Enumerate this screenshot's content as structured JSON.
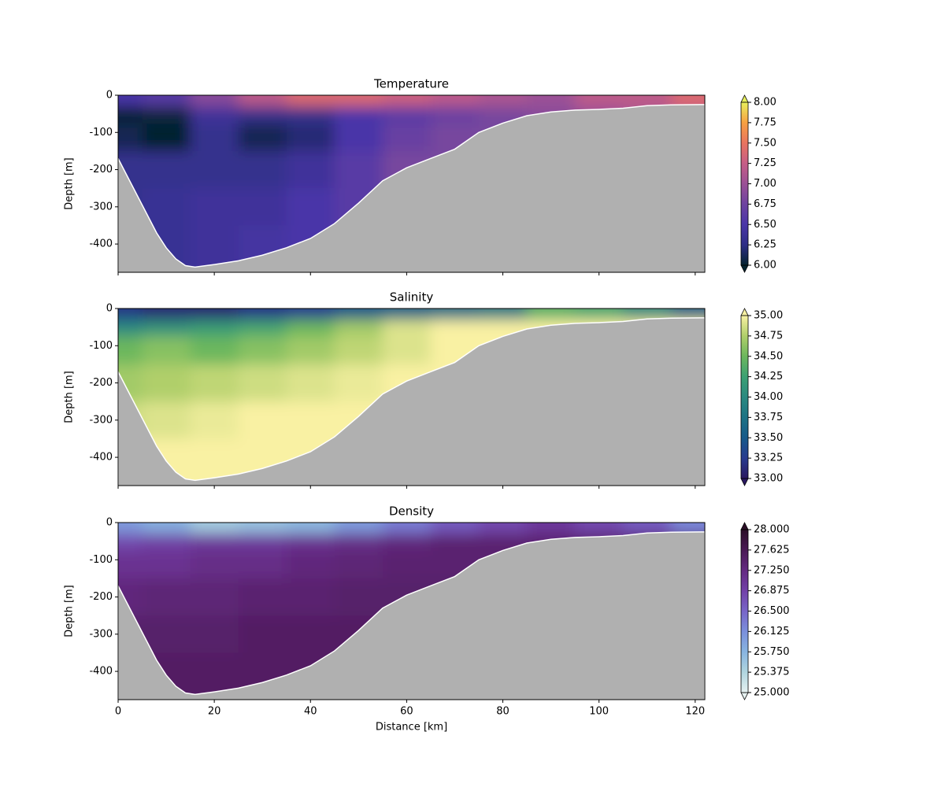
{
  "chart_data": [
    {
      "type": "contour",
      "title": "Temperature",
      "ylabel": "Depth [m]",
      "show_xticklabels": false,
      "xlim": [
        0,
        122
      ],
      "ylim": [
        -476,
        0
      ],
      "xticks": [
        0,
        20,
        40,
        60,
        80,
        100,
        120
      ],
      "yticks": [
        0,
        -100,
        -200,
        -300,
        -400
      ],
      "field": {
        "x": [
          0,
          10,
          20,
          30,
          40,
          50,
          60,
          70,
          80,
          90,
          100,
          110,
          120
        ],
        "depth": [
          -10,
          -50,
          -100,
          -200,
          -300,
          -400,
          -460
        ],
        "values": [
          [
            6.5,
            6.6,
            6.9,
            7.2,
            7.4,
            7.4,
            7.3,
            7.2,
            7.1,
            7.0,
            7.2,
            7.2,
            7.4
          ],
          [
            6.0,
            6.05,
            6.4,
            6.3,
            6.3,
            6.5,
            6.6,
            6.7,
            6.8,
            6.9,
            7.0,
            7.1,
            7.2
          ],
          [
            6.1,
            6.0,
            6.3,
            6.1,
            6.2,
            6.5,
            6.7,
            6.8,
            6.8,
            6.8,
            6.9,
            7.0,
            7.0
          ],
          [
            6.3,
            6.3,
            6.3,
            6.3,
            6.4,
            6.6,
            6.8,
            6.8,
            6.8,
            6.8,
            6.8,
            6.8,
            6.8
          ],
          [
            6.3,
            6.35,
            6.4,
            6.4,
            6.5,
            6.6,
            6.7,
            6.7,
            6.7,
            6.7,
            6.7,
            6.7,
            6.7
          ],
          [
            6.35,
            6.35,
            6.4,
            6.45,
            6.5,
            6.6,
            6.6,
            6.6,
            6.6,
            6.6,
            6.6,
            6.6,
            6.6
          ],
          [
            6.35,
            6.35,
            6.4,
            6.45,
            6.5,
            6.6,
            6.6,
            6.6,
            6.6,
            6.6,
            6.6,
            6.6,
            6.6
          ]
        ]
      },
      "bathymetry": {
        "color": "#b0b0b0",
        "x": [
          0,
          2,
          4,
          6,
          8,
          10,
          12,
          14,
          16,
          20,
          25,
          30,
          35,
          40,
          45,
          50,
          55,
          60,
          65,
          70,
          75,
          80,
          85,
          90,
          95,
          100,
          105,
          110,
          115,
          122
        ],
        "depth": [
          -170,
          -220,
          -270,
          -320,
          -370,
          -410,
          -440,
          -458,
          -462,
          -455,
          -445,
          -430,
          -410,
          -385,
          -345,
          -290,
          -230,
          -195,
          -170,
          -145,
          -100,
          -75,
          -55,
          -45,
          -40,
          -38,
          -35,
          -28,
          -26,
          -25
        ]
      },
      "colorbar": {
        "lim": [
          6,
          8
        ],
        "colormap": [
          "#04232f",
          "#2e2e86",
          "#4a36a8",
          "#6e43a0",
          "#9b5196",
          "#c65d86",
          "#e9745f",
          "#f7a042",
          "#e8f05d"
        ],
        "ticks": [
          {
            "value": 6,
            "label": "6.00"
          },
          {
            "value": 6.25,
            "label": "6.25"
          },
          {
            "value": 6.5,
            "label": "6.50"
          },
          {
            "value": 6.75,
            "label": "6.75"
          },
          {
            "value": 7,
            "label": "7.00"
          },
          {
            "value": 7.25,
            "label": "7.25"
          },
          {
            "value": 7.5,
            "label": "7.50"
          },
          {
            "value": 7.75,
            "label": "7.75"
          },
          {
            "value": 8,
            "label": "8.00"
          }
        ]
      }
    },
    {
      "type": "contour",
      "title": "Salinity",
      "ylabel": "Depth [m]",
      "show_xticklabels": false,
      "xlim": [
        0,
        122
      ],
      "ylim": [
        -476,
        0
      ],
      "xticks": [
        0,
        20,
        40,
        60,
        80,
        100,
        120
      ],
      "yticks": [
        0,
        -100,
        -200,
        -300,
        -400
      ],
      "field": {
        "x": [
          0,
          10,
          20,
          30,
          40,
          50,
          60,
          70,
          80,
          90,
          100,
          110,
          120
        ],
        "depth": [
          -10,
          -50,
          -100,
          -200,
          -300,
          -400,
          -460
        ],
        "values": [
          [
            33.2,
            33.1,
            33.1,
            33.2,
            33.3,
            33.5,
            33.6,
            33.7,
            33.8,
            34.4,
            34.3,
            34.0,
            33.6
          ],
          [
            34.0,
            34.1,
            34.2,
            34.3,
            34.5,
            34.7,
            34.9,
            35.0,
            35.0,
            35.0,
            35.0,
            35.0,
            35.0
          ],
          [
            34.5,
            34.6,
            34.5,
            34.6,
            34.7,
            34.8,
            34.9,
            35.0,
            35.0,
            35.0,
            35.0,
            35.0,
            35.0
          ],
          [
            34.7,
            34.75,
            34.8,
            34.85,
            34.9,
            34.95,
            35.0,
            35.0,
            35.0,
            35.0,
            35.0,
            35.0,
            35.0
          ],
          [
            34.85,
            34.9,
            34.95,
            35.0,
            35.0,
            35.0,
            35.0,
            35.0,
            35.0,
            35.0,
            35.0,
            35.0,
            35.0
          ],
          [
            34.95,
            35.0,
            35.0,
            35.0,
            35.0,
            35.0,
            35.0,
            35.0,
            35.0,
            35.0,
            35.0,
            35.0,
            35.0
          ],
          [
            34.95,
            35.0,
            35.0,
            35.0,
            35.0,
            35.0,
            35.0,
            35.0,
            35.0,
            35.0,
            35.0,
            35.0,
            35.0
          ]
        ]
      },
      "bathymetry": {
        "color": "#b0b0b0",
        "x": [
          0,
          2,
          4,
          6,
          8,
          10,
          12,
          14,
          16,
          20,
          25,
          30,
          35,
          40,
          45,
          50,
          55,
          60,
          65,
          70,
          75,
          80,
          85,
          90,
          95,
          100,
          105,
          110,
          115,
          122
        ],
        "depth": [
          -170,
          -220,
          -270,
          -320,
          -370,
          -410,
          -440,
          -458,
          -462,
          -455,
          -445,
          -430,
          -410,
          -385,
          -345,
          -290,
          -230,
          -195,
          -170,
          -145,
          -100,
          -75,
          -55,
          -45,
          -40,
          -38,
          -35,
          -28,
          -26,
          -25
        ]
      },
      "colorbar": {
        "lim": [
          33,
          35
        ],
        "colormap": [
          "#2a1860",
          "#283b8f",
          "#175a8a",
          "#1d7385",
          "#2a8a80",
          "#3ca173",
          "#6cb75d",
          "#b0cf6a",
          "#f9f1a3"
        ],
        "ticks": [
          {
            "value": 33,
            "label": "33.00"
          },
          {
            "value": 33.25,
            "label": "33.25"
          },
          {
            "value": 33.5,
            "label": "33.50"
          },
          {
            "value": 33.75,
            "label": "33.75"
          },
          {
            "value": 34,
            "label": "34.00"
          },
          {
            "value": 34.25,
            "label": "34.25"
          },
          {
            "value": 34.5,
            "label": "34.50"
          },
          {
            "value": 34.75,
            "label": "34.75"
          },
          {
            "value": 35,
            "label": "35.00"
          }
        ]
      }
    },
    {
      "type": "contour",
      "title": "Density",
      "ylabel": "Depth [m]",
      "xlabel": "Distance [km]",
      "show_xticklabels": true,
      "xlim": [
        0,
        122
      ],
      "ylim": [
        -476,
        0
      ],
      "xticks": [
        0,
        20,
        40,
        60,
        80,
        100,
        120
      ],
      "yticks": [
        0,
        -100,
        -200,
        -300,
        -400
      ],
      "field": {
        "x": [
          0,
          10,
          20,
          30,
          40,
          50,
          60,
          70,
          80,
          90,
          100,
          110,
          120
        ],
        "depth": [
          -10,
          -50,
          -100,
          -200,
          -300,
          -400,
          -460
        ],
        "values": [
          [
            26.0,
            25.8,
            25.5,
            25.6,
            25.7,
            26.0,
            26.3,
            26.6,
            26.8,
            27.0,
            26.8,
            26.6,
            26.2
          ],
          [
            26.8,
            26.9,
            27.0,
            27.0,
            27.1,
            27.2,
            27.3,
            27.4,
            27.4,
            27.4,
            27.4,
            27.4,
            27.4
          ],
          [
            27.1,
            27.1,
            27.2,
            27.2,
            27.3,
            27.35,
            27.4,
            27.4,
            27.4,
            27.4,
            27.4,
            27.4,
            27.4
          ],
          [
            27.3,
            27.35,
            27.35,
            27.4,
            27.4,
            27.45,
            27.45,
            27.45,
            27.45,
            27.45,
            27.45,
            27.45,
            27.45
          ],
          [
            27.45,
            27.45,
            27.45,
            27.5,
            27.5,
            27.5,
            27.5,
            27.5,
            27.5,
            27.5,
            27.5,
            27.5,
            27.5
          ],
          [
            27.5,
            27.5,
            27.5,
            27.5,
            27.5,
            27.5,
            27.5,
            27.5,
            27.5,
            27.5,
            27.5,
            27.5,
            27.5
          ],
          [
            27.5,
            27.5,
            27.5,
            27.5,
            27.5,
            27.5,
            27.5,
            27.5,
            27.5,
            27.5,
            27.5,
            27.5,
            27.5
          ]
        ]
      },
      "bathymetry": {
        "color": "#b0b0b0",
        "x": [
          0,
          2,
          4,
          6,
          8,
          10,
          12,
          14,
          16,
          20,
          25,
          30,
          35,
          40,
          45,
          50,
          55,
          60,
          65,
          70,
          75,
          80,
          85,
          90,
          95,
          100,
          105,
          110,
          115,
          122
        ],
        "depth": [
          -170,
          -220,
          -270,
          -320,
          -370,
          -410,
          -440,
          -458,
          -462,
          -455,
          -445,
          -430,
          -410,
          -385,
          -345,
          -290,
          -230,
          -195,
          -170,
          -145,
          -100,
          -75,
          -55,
          -45,
          -40,
          -38,
          -35,
          -28,
          -26,
          -25
        ]
      },
      "colorbar": {
        "lim": [
          25,
          28
        ],
        "colormap": [
          "#e6f1f1",
          "#b0d5df",
          "#88b4e0",
          "#7a8fdc",
          "#7865c8",
          "#7241a8",
          "#642a82",
          "#4a1a55",
          "#2c0f28"
        ],
        "ticks": [
          {
            "value": 25,
            "label": "25.000"
          },
          {
            "value": 25.375,
            "label": "25.375"
          },
          {
            "value": 25.75,
            "label": "25.750"
          },
          {
            "value": 26.125,
            "label": "26.125"
          },
          {
            "value": 26.5,
            "label": "26.500"
          },
          {
            "value": 26.875,
            "label": "26.875"
          },
          {
            "value": 27.25,
            "label": "27.250"
          },
          {
            "value": 27.625,
            "label": "27.625"
          },
          {
            "value": 28,
            "label": "28.000"
          }
        ]
      }
    }
  ]
}
